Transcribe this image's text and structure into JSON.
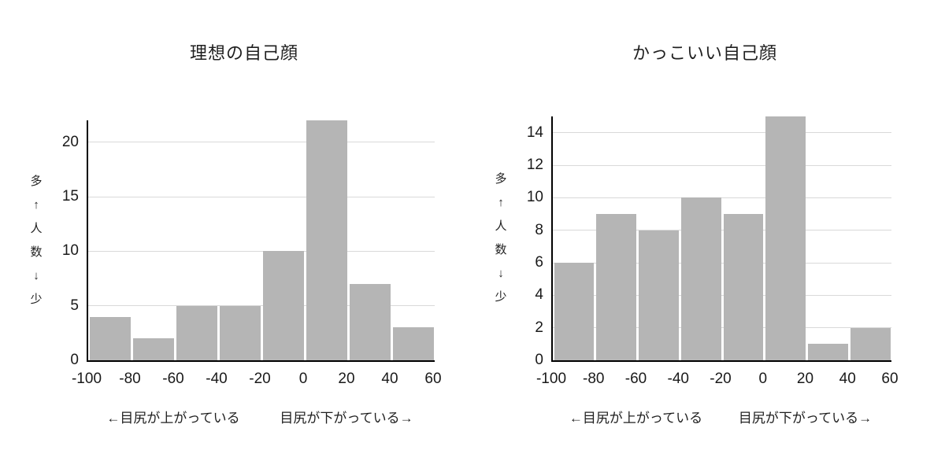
{
  "colors": {
    "bar": "#b5b5b5",
    "gridline": "#d9d9d9",
    "axis": "#000000",
    "text": "#1a1a1a",
    "background": "#ffffff"
  },
  "chart_data": [
    {
      "type": "bar",
      "title": "理想の自己顔",
      "categories": [
        "-100",
        "-80",
        "-60",
        "-40",
        "-20",
        "0",
        "20",
        "40",
        "60"
      ],
      "bins": [
        "-100–-80",
        "-80–-60",
        "-60–-40",
        "-40–-20",
        "-20–0",
        "0–20",
        "20–40",
        "40–60"
      ],
      "values": [
        4,
        2,
        5,
        5,
        10,
        22,
        7,
        3
      ],
      "xlabel": "",
      "ylabel_vertical": "多\n↑\n人\n数\n↓\n少",
      "xlabel_left": "←目尻が上がっている",
      "xlabel_right": "目尻が下がっている→",
      "ylim": [
        0,
        22
      ],
      "yticks": [
        0,
        5,
        10,
        15,
        20
      ],
      "grid": true,
      "legend": "none",
      "bar_color": "#b5b5b5"
    },
    {
      "type": "bar",
      "title": "かっこいい自己顔",
      "categories": [
        "-100",
        "-80",
        "-60",
        "-40",
        "-20",
        "0",
        "20",
        "40",
        "60"
      ],
      "bins": [
        "-100–-80",
        "-80–-60",
        "-60–-40",
        "-40–-20",
        "-20–0",
        "0–20",
        "20–40",
        "40–60"
      ],
      "values": [
        6,
        9,
        8,
        10,
        9,
        15,
        1,
        2
      ],
      "xlabel": "",
      "ylabel_vertical": "多\n↑\n人\n数\n↓\n少",
      "xlabel_left": "←目尻が上がっている",
      "xlabel_right": "目尻が下がっている→",
      "ylim": [
        0,
        15
      ],
      "yticks": [
        0,
        2,
        4,
        6,
        8,
        10,
        12,
        14
      ],
      "grid": true,
      "legend": "none",
      "bar_color": "#b5b5b5"
    }
  ]
}
